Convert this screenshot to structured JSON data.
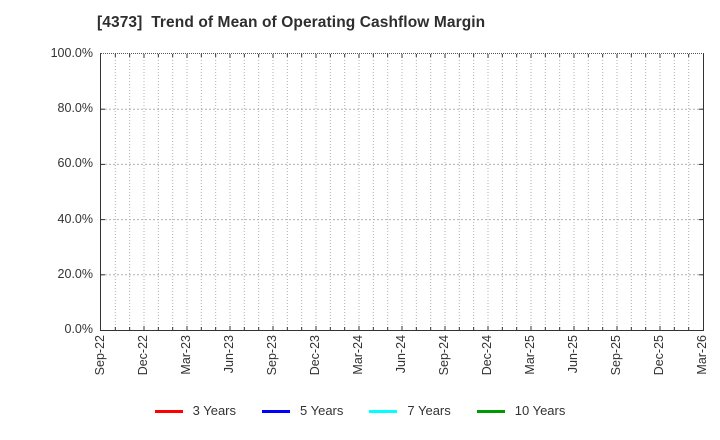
{
  "title": "[4373]  Trend of Mean of Operating Cashflow Margin",
  "chart_data": {
    "type": "line",
    "title": "[4373]  Trend of Mean of Operating Cashflow Margin",
    "xlabel": "",
    "ylabel": "",
    "ylim": [
      0,
      100
    ],
    "y_tick_labels": [
      "0.0%",
      "20.0%",
      "40.0%",
      "60.0%",
      "80.0%",
      "100.0%"
    ],
    "x_tick_labels": [
      "Sep-22",
      "Dec-22",
      "Mar-23",
      "Jun-23",
      "Sep-23",
      "Dec-23",
      "Mar-24",
      "Jun-24",
      "Sep-24",
      "Dec-24",
      "Mar-25",
      "Jun-25",
      "Sep-25",
      "Dec-25",
      "Mar-26"
    ],
    "x_total_months": 42,
    "grid": true,
    "legend_position": "bottom",
    "series": [
      {
        "name": "3 Years",
        "color": "#ff0000",
        "values": []
      },
      {
        "name": "5 Years",
        "color": "#0000ff",
        "values": []
      },
      {
        "name": "7 Years",
        "color": "#00ffff",
        "values": []
      },
      {
        "name": "10 Years",
        "color": "#009900",
        "values": []
      }
    ]
  },
  "colors": {
    "frame": "#333333",
    "grid": "#b0b0b0",
    "tick": "#333333",
    "text": "#333333",
    "background": "#ffffff"
  }
}
